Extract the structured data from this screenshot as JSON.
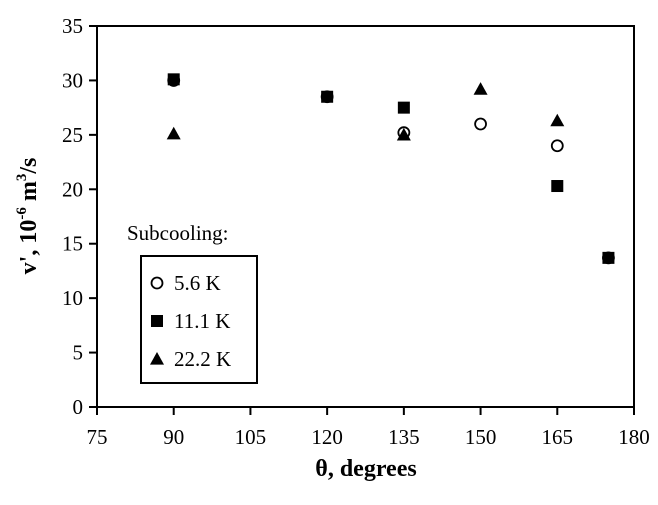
{
  "chart_data": {
    "type": "scatter",
    "title": "",
    "xlabel": "θ, degrees",
    "ylabel": {
      "main": "v', 10",
      "exp1": "-6",
      "unit": " m",
      "exp2": "3",
      "tail": "/s"
    },
    "xlim": [
      75,
      180
    ],
    "ylim": [
      0,
      35
    ],
    "xticks": [
      "75",
      "90",
      "105",
      "120",
      "135",
      "150",
      "165",
      "180"
    ],
    "yticks": [
      "0",
      "5",
      "10",
      "15",
      "20",
      "25",
      "30",
      "35"
    ],
    "grid": false,
    "legend": {
      "title": "Subcooling:",
      "placement": "lower-left"
    },
    "series": [
      {
        "name": "5.6 K",
        "marker": "open-circle",
        "x": [
          90,
          120,
          135,
          150,
          165,
          175
        ],
        "y": [
          30,
          28.5,
          25.2,
          26,
          24,
          13.7
        ]
      },
      {
        "name": "11.1 K",
        "marker": "filled-square",
        "x": [
          90,
          120,
          135,
          165,
          175
        ],
        "y": [
          30.1,
          28.5,
          27.5,
          20.3,
          13.7
        ]
      },
      {
        "name": "22.2 K",
        "marker": "filled-triangle",
        "x": [
          90,
          135,
          150,
          165
        ],
        "y": [
          25.1,
          25,
          29.2,
          26.3
        ]
      }
    ]
  }
}
